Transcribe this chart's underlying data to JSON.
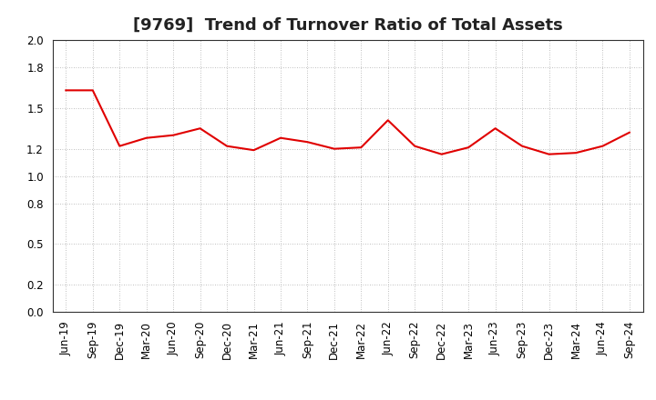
{
  "title": "[9769]  Trend of Turnover Ratio of Total Assets",
  "x_labels": [
    "Jun-19",
    "Sep-19",
    "Dec-19",
    "Mar-20",
    "Jun-20",
    "Sep-20",
    "Dec-20",
    "Mar-21",
    "Jun-21",
    "Sep-21",
    "Dec-21",
    "Mar-22",
    "Jun-22",
    "Sep-22",
    "Dec-22",
    "Mar-23",
    "Jun-23",
    "Sep-23",
    "Dec-23",
    "Mar-24",
    "Jun-24",
    "Sep-24"
  ],
  "y_values": [
    1.63,
    1.63,
    1.22,
    1.28,
    1.3,
    1.35,
    1.22,
    1.19,
    1.28,
    1.25,
    1.2,
    1.21,
    1.41,
    1.22,
    1.16,
    1.21,
    1.35,
    1.22,
    1.16,
    1.17,
    1.22,
    1.32
  ],
  "line_color": "#e00000",
  "line_width": 1.5,
  "ylim": [
    0.0,
    2.0
  ],
  "yticks": [
    0.0,
    0.2,
    0.5,
    0.8,
    1.0,
    1.2,
    1.5,
    1.8,
    2.0
  ],
  "grid_color": "#aaaaaa",
  "bg_color": "#ffffff",
  "title_fontsize": 13,
  "tick_fontsize": 8.5,
  "title_color": "#222222"
}
